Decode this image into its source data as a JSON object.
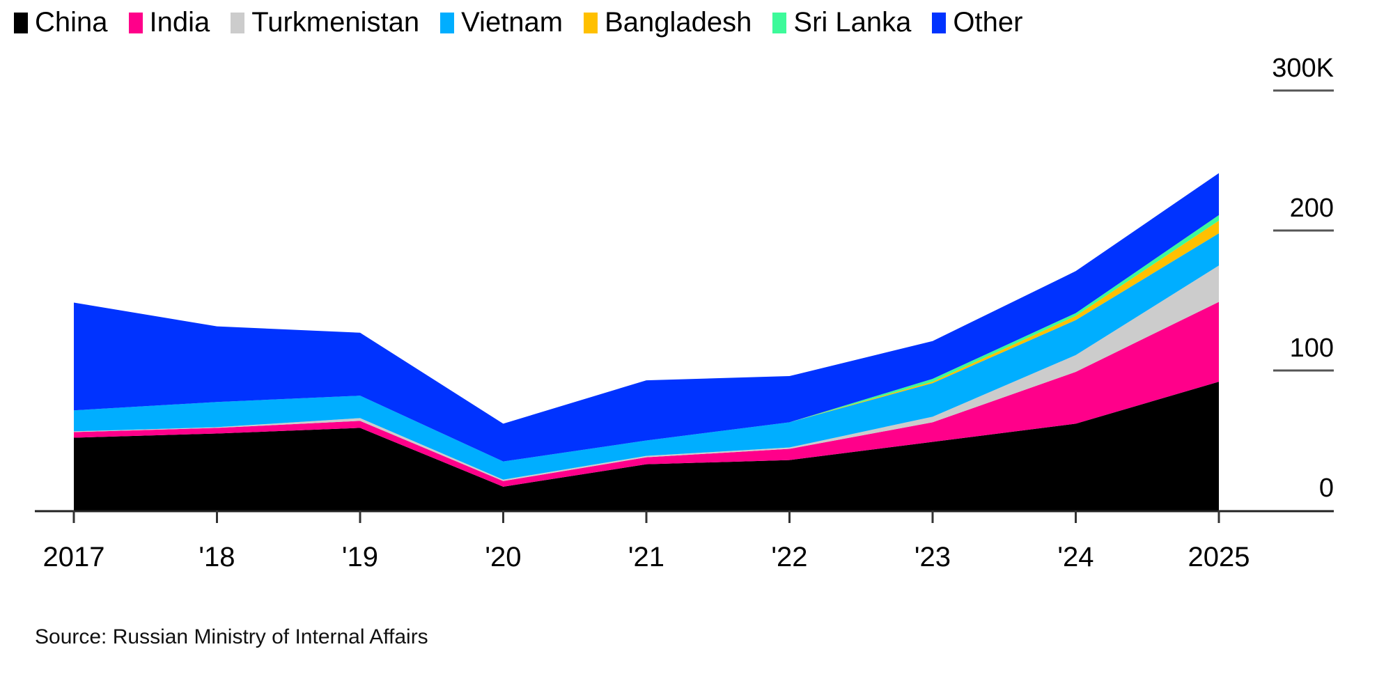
{
  "chart_data": {
    "type": "area",
    "stacked": true,
    "title": "",
    "xlabel": "",
    "ylabel": "",
    "categories": [
      "2017",
      "'18",
      "'19",
      "'20",
      "'21",
      "'22",
      "'23",
      "'24",
      "2025"
    ],
    "ylim": [
      0,
      300
    ],
    "yticks": [
      0,
      100,
      200,
      300
    ],
    "ytick_labels": [
      "0",
      "100",
      "200",
      "300K"
    ],
    "legend_position": "top-left",
    "series": [
      {
        "name": "China",
        "color": "#000000",
        "values": [
          52,
          55,
          59,
          17,
          33,
          36,
          49,
          62,
          92
        ]
      },
      {
        "name": "India",
        "color": "#ff008a",
        "values": [
          4,
          4,
          5,
          4,
          5,
          8,
          14,
          37,
          57
        ]
      },
      {
        "name": "Turkmenistan",
        "color": "#cccccc",
        "values": [
          0.5,
          0.5,
          2,
          1,
          1,
          1,
          4,
          12,
          26
        ]
      },
      {
        "name": "Vietnam",
        "color": "#00aeff",
        "values": [
          15,
          18,
          16,
          13,
          11,
          18,
          24,
          25,
          23
        ]
      },
      {
        "name": "Bangladesh",
        "color": "#ffc000",
        "values": [
          0,
          0,
          0,
          0,
          0,
          0,
          1,
          3,
          9
        ]
      },
      {
        "name": "Sri Lanka",
        "color": "#3dfa9a",
        "values": [
          0,
          0,
          0,
          0,
          0,
          0,
          2,
          2,
          4
        ]
      },
      {
        "name": "Other",
        "color": "#0033ff",
        "values": [
          77,
          54,
          45,
          27,
          43,
          33,
          27,
          30,
          30
        ]
      }
    ]
  },
  "source": "Source: Russian Ministry of Internal Affairs"
}
